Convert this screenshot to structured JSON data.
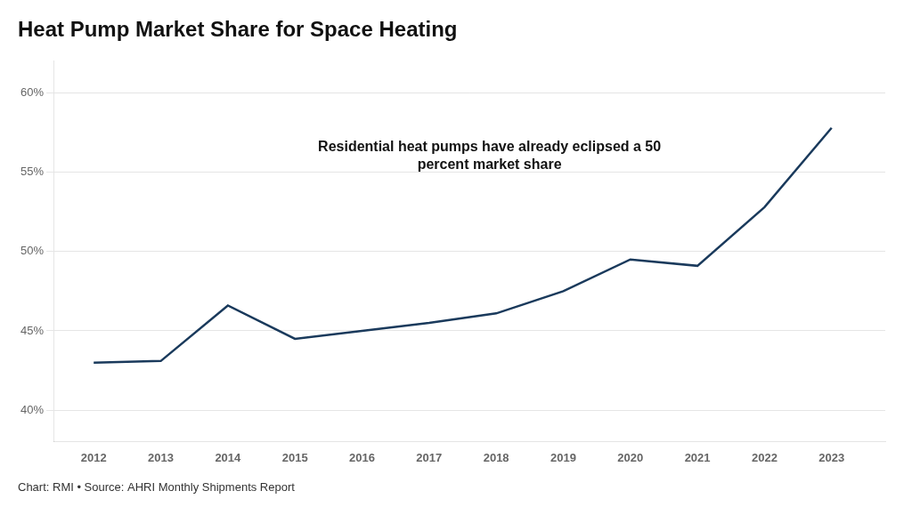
{
  "chart_data": {
    "type": "line",
    "title": "Heat Pump Market Share for Space Heating",
    "x": [
      2012,
      2013,
      2014,
      2015,
      2016,
      2017,
      2018,
      2019,
      2020,
      2021,
      2022,
      2023
    ],
    "values": [
      0.43,
      0.431,
      0.466,
      0.445,
      0.45,
      0.455,
      0.461,
      0.475,
      0.495,
      0.491,
      0.528,
      0.578
    ],
    "color": "#1a3a5c",
    "xlim": [
      2011.4,
      2023.8
    ],
    "xticks": [
      2012,
      2013,
      2014,
      2015,
      2016,
      2017,
      2018,
      2019,
      2020,
      2021,
      2022,
      2023
    ],
    "ylim": [
      0.38,
      0.62
    ],
    "yticks": [
      {
        "value": 0.4,
        "label": "40%"
      },
      {
        "value": 0.45,
        "label": "45%"
      },
      {
        "value": 0.5,
        "label": "50%"
      },
      {
        "value": 0.55,
        "label": "55%"
      },
      {
        "value": 0.6,
        "label": "60%"
      }
    ],
    "grid": true,
    "annotations": [
      {
        "text": "Residential heat pumps have already eclipsed a 50\npercent market share",
        "x": 2017.9,
        "y": 0.56
      }
    ],
    "source": "Chart: RMI • Source: AHRI Monthly Shipments Report"
  }
}
